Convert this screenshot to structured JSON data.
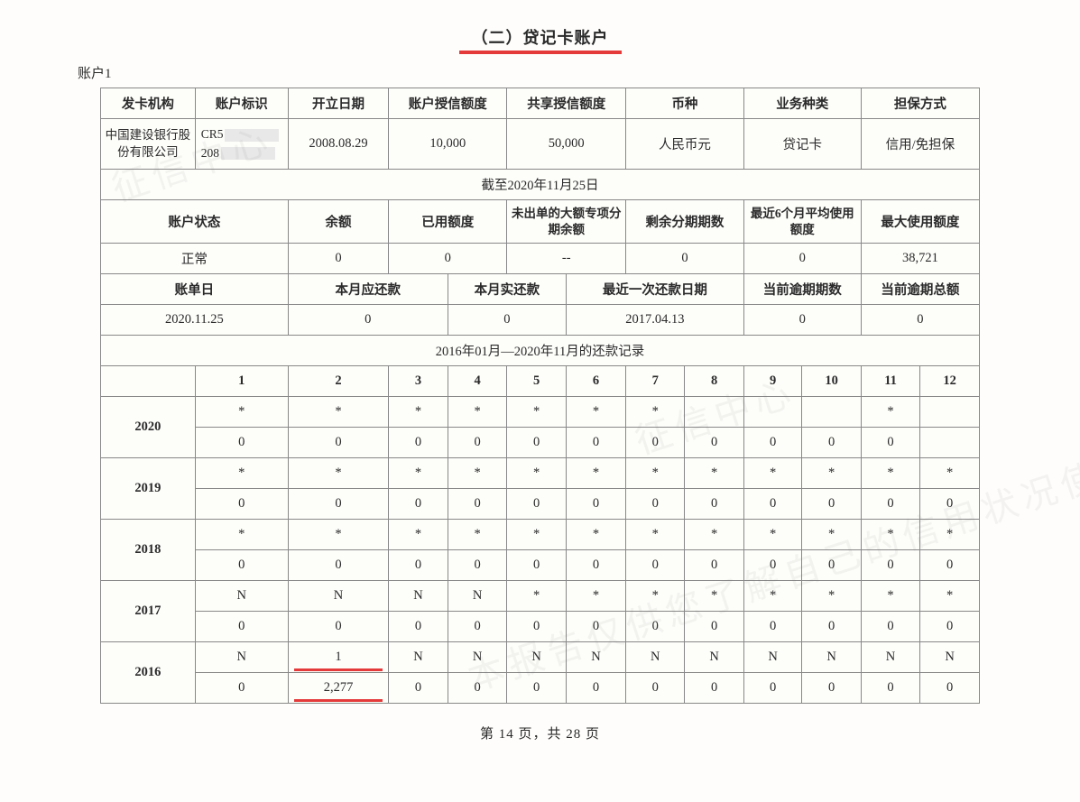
{
  "section_title": "（二）贷记卡账户",
  "account_label": "账户1",
  "table1": {
    "headers": [
      "发卡机构",
      "账户标识",
      "开立日期",
      "账户授信额度",
      "共享授信额度",
      "币种",
      "业务种类",
      "担保方式"
    ],
    "row": {
      "issuer": "中国建设银行股份有限公司",
      "account_id_prefix": "CR5",
      "account_id_line2_prefix": "208",
      "open_date": "2008.08.29",
      "credit_limit": "10,000",
      "shared_limit": "50,000",
      "currency": "人民币元",
      "biz_type": "贷记卡",
      "guarantee": "信用/免担保"
    }
  },
  "as_of_label": "截至2020年11月25日",
  "table2": {
    "headers": [
      "账户状态",
      "余额",
      "已用额度",
      "未出单的大额专项分期余额",
      "剩余分期期数",
      "最近6个月平均使用额度",
      "最大使用额度"
    ],
    "values": [
      "正常",
      "0",
      "0",
      "--",
      "0",
      "0",
      "38,721"
    ]
  },
  "table3": {
    "headers": [
      "账单日",
      "本月应还款",
      "本月实还款",
      "最近一次还款日期",
      "当前逾期期数",
      "当前逾期总额"
    ],
    "values": [
      "2020.11.25",
      "0",
      "0",
      "2017.04.13",
      "0",
      "0"
    ]
  },
  "history_title": "2016年01月—2020年11月的还款记录",
  "months": [
    "1",
    "2",
    "3",
    "4",
    "5",
    "6",
    "7",
    "8",
    "9",
    "10",
    "11",
    "12"
  ],
  "history": {
    "2020": {
      "row1": [
        "*",
        "*",
        "*",
        "*",
        "*",
        "*",
        "*",
        "",
        "",
        "",
        "*",
        ""
      ],
      "row2": [
        "0",
        "0",
        "0",
        "0",
        "0",
        "0",
        "0",
        "0",
        "0",
        "0",
        "0",
        ""
      ]
    },
    "2019": {
      "row1": [
        "*",
        "*",
        "*",
        "*",
        "*",
        "*",
        "*",
        "*",
        "*",
        "*",
        "*",
        "*"
      ],
      "row2": [
        "0",
        "0",
        "0",
        "0",
        "0",
        "0",
        "0",
        "0",
        "0",
        "0",
        "0",
        "0"
      ]
    },
    "2018": {
      "row1": [
        "*",
        "*",
        "*",
        "*",
        "*",
        "*",
        "*",
        "*",
        "*",
        "*",
        "*",
        "*"
      ],
      "row2": [
        "0",
        "0",
        "0",
        "0",
        "0",
        "0",
        "0",
        "0",
        "0",
        "0",
        "0",
        "0"
      ]
    },
    "2017": {
      "row1": [
        "N",
        "N",
        "N",
        "N",
        "*",
        "*",
        "*",
        "*",
        "*",
        "*",
        "*",
        "*"
      ],
      "row2": [
        "0",
        "0",
        "0",
        "0",
        "0",
        "0",
        "0",
        "0",
        "0",
        "0",
        "0",
        "0"
      ]
    },
    "2016": {
      "row1": [
        "N",
        "1",
        "N",
        "N",
        "N",
        "N",
        "N",
        "N",
        "N",
        "N",
        "N",
        "N"
      ],
      "row2": [
        "0",
        "2,277",
        "0",
        "0",
        "0",
        "0",
        "0",
        "0",
        "0",
        "0",
        "0",
        "0"
      ]
    }
  },
  "highlight_year": "2016",
  "highlight_col": 1,
  "footer": "第 14 页，共 28 页",
  "colors": {
    "border": "#888888",
    "text": "#2a2a2a",
    "highlight": "#e43a3a",
    "background": "#fefdfb"
  },
  "col_widths": {
    "table1": [
      120,
      110,
      120,
      130,
      130,
      110,
      110,
      140
    ],
    "table2": [
      135,
      120,
      135,
      170,
      140,
      155,
      120
    ],
    "table3": [
      162,
      162,
      162,
      163,
      163,
      163
    ],
    "year_col": 75,
    "month_col": 75
  }
}
